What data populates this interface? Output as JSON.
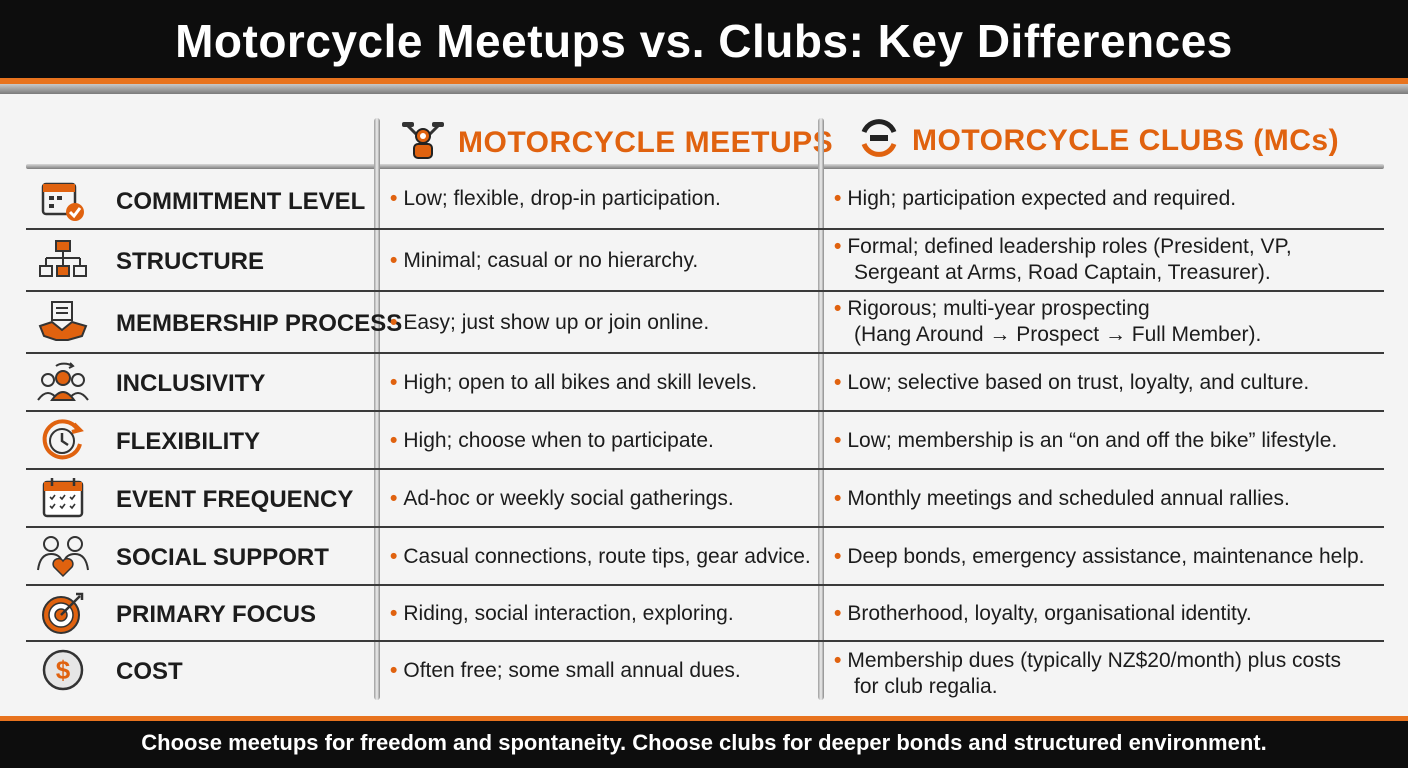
{
  "title": "Motorcycle Meetups vs. Clubs: Key Differences",
  "columns": {
    "meetups": "MOTORCYCLE MEETUPS",
    "clubs": "MOTORCYCLE CLUBS (MCs)"
  },
  "rows": [
    {
      "label": "COMMITMENT LEVEL",
      "icon": "calendar-check-icon",
      "meetups": "Low; flexible, drop-in participation.",
      "clubs_line1": "High; participation expected and required.",
      "clubs_line2": ""
    },
    {
      "label": "STRUCTURE",
      "icon": "org-chart-icon",
      "meetups": "Minimal; casual or no hierarchy.",
      "clubs_line1": "Formal; defined leadership roles (President, VP,",
      "clubs_line2": "Sergeant at Arms, Road Captain, Treasurer)."
    },
    {
      "label": "MEMBERSHIP PROCESS",
      "icon": "handshake-icon",
      "meetups": "Easy; just show up or join online.",
      "clubs_line1": "Rigorous; multi-year prospecting",
      "clubs_line2": "(Hang Around → Prospect → Full Member)."
    },
    {
      "label": "INCLUSIVITY",
      "icon": "group-icon",
      "meetups": "High; open to all bikes and skill levels.",
      "clubs_line1": "Low; selective based on trust, loyalty, and culture.",
      "clubs_line2": ""
    },
    {
      "label": "FLEXIBILITY",
      "icon": "clock-icon",
      "meetups": "High; choose when to participate.",
      "clubs_line1": "Low; membership is an “on and off the bike” lifestyle.",
      "clubs_line2": ""
    },
    {
      "label": "EVENT FREQUENCY",
      "icon": "calendar-icon",
      "meetups": "Ad-hoc or weekly social gatherings.",
      "clubs_line1": "Monthly meetings and scheduled annual rallies.",
      "clubs_line2": ""
    },
    {
      "label": "SOCIAL SUPPORT",
      "icon": "heart-people-icon",
      "meetups": "Casual connections, route tips, gear advice.",
      "clubs_line1": "Deep bonds, emergency assistance, maintenance help.",
      "clubs_line2": ""
    },
    {
      "label": "PRIMARY FOCUS",
      "icon": "target-icon",
      "meetups": "Riding, social interaction, exploring.",
      "clubs_line1": "Brotherhood, loyalty, organisational identity.",
      "clubs_line2": ""
    },
    {
      "label": "COST",
      "icon": "dollar-icon",
      "meetups": "Often free; some small annual dues.",
      "clubs_line1": "Membership dues (typically NZ$20/month) plus costs",
      "clubs_line2": "for club regalia."
    }
  ],
  "footer": "Choose meetups for freedom and spontaneity. Choose clubs for deeper bonds and structured environment.",
  "colors": {
    "accent": "#e0620f",
    "dark": "#0d0d0d",
    "text": "#1c1c1c"
  }
}
